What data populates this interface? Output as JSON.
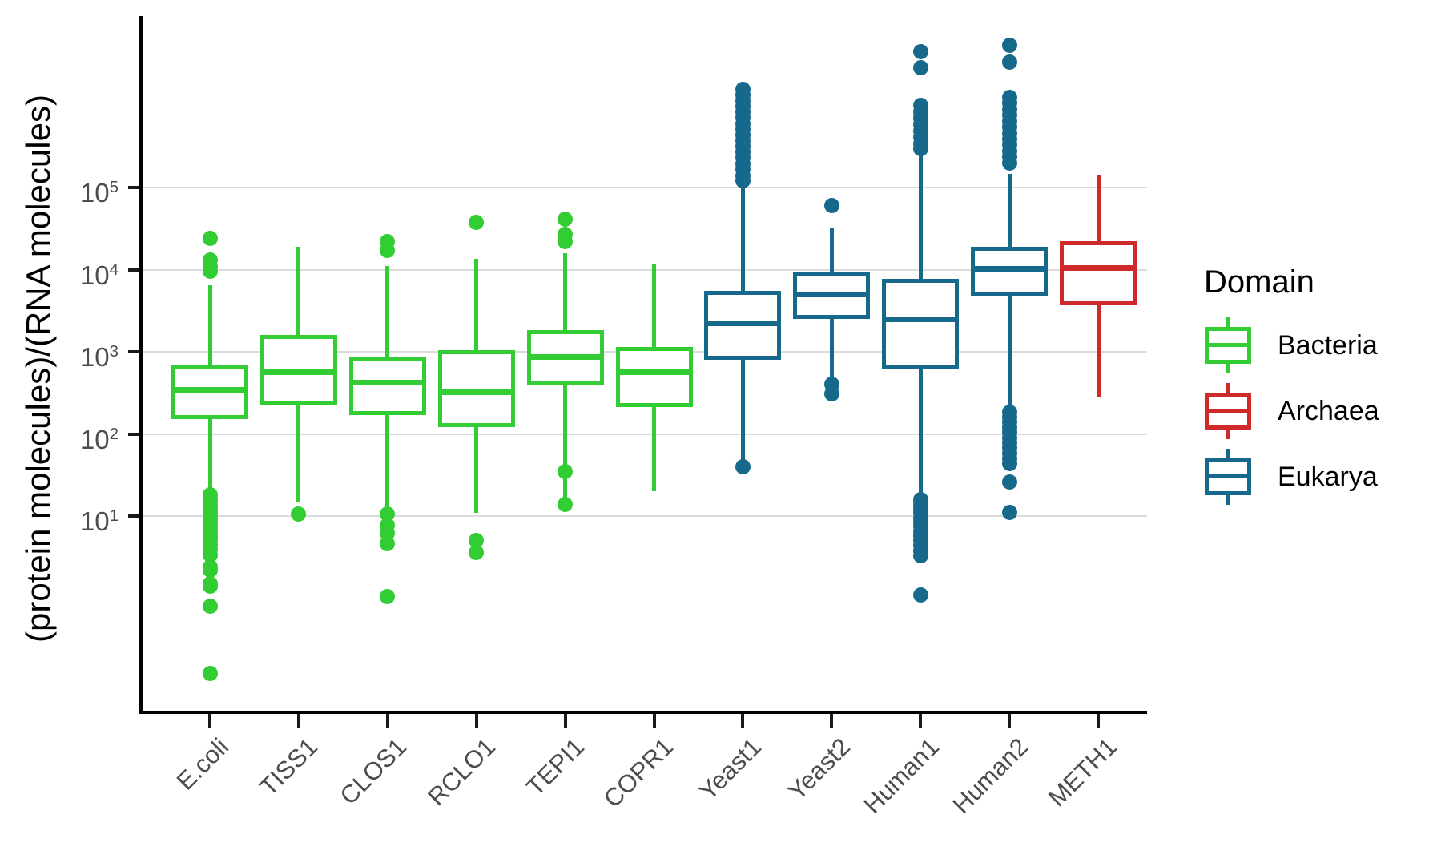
{
  "y_axis": {
    "title": "(protein molecules)/(RNA molecules)",
    "ticks": [
      {
        "exponent": 5,
        "value": 100000
      },
      {
        "exponent": 4,
        "value": 10000
      },
      {
        "exponent": 3,
        "value": 1000
      },
      {
        "exponent": 2,
        "value": 100
      },
      {
        "exponent": 1,
        "value": 10
      }
    ]
  },
  "legend": {
    "title": "Domain",
    "items": [
      {
        "label": "Bacteria",
        "color": "#32CD32"
      },
      {
        "label": "Archaea",
        "color": "#CE2A2A"
      },
      {
        "label": "Eukarya",
        "color": "#17698C"
      }
    ]
  },
  "chart_data": {
    "type": "boxplot",
    "title": "",
    "xlabel": "",
    "ylabel": "(protein molecules)/(RNA molecules)",
    "y_scale": "log10",
    "ylim": [
      0.04,
      12000000
    ],
    "grid": "horizontal-major-decades",
    "legend_position": "right",
    "categories": [
      "E.coli",
      "TISS1",
      "CLOS1",
      "RCLO1",
      "TEPI1",
      "COPR1",
      "Yeast1",
      "Yeast2",
      "Human1",
      "Human2",
      "METH1"
    ],
    "series": [
      {
        "name": "E.coli",
        "domain": "Bacteria",
        "color": "#32CD32",
        "stats": {
          "whisker_low": 21,
          "q1": 150,
          "median": 345,
          "q3": 680,
          "whisker_high": 6500
        },
        "outliers_high": [
          24000,
          13000,
          11000,
          9500
        ],
        "outliers_low": [
          18,
          16,
          14,
          12.5,
          11,
          10,
          9,
          8,
          7,
          6.3,
          5.6,
          5,
          4.4,
          3.9,
          3.4,
          2.4,
          2.2,
          1.5,
          1.4,
          0.8,
          0.12
        ]
      },
      {
        "name": "TISS1",
        "domain": "Bacteria",
        "color": "#32CD32",
        "stats": {
          "whisker_low": 15,
          "q1": 225,
          "median": 560,
          "q3": 1600,
          "whisker_high": 19000
        },
        "outliers_high": [],
        "outliers_low": [
          10.5
        ]
      },
      {
        "name": "CLOS1",
        "domain": "Bacteria",
        "color": "#32CD32",
        "stats": {
          "whisker_low": 13,
          "q1": 170,
          "median": 420,
          "q3": 880,
          "whisker_high": 11000
        },
        "outliers_high": [
          22000,
          17000
        ],
        "outliers_low": [
          10.5,
          7.8,
          6.2,
          4.6,
          1.05
        ]
      },
      {
        "name": "RCLO1",
        "domain": "Bacteria",
        "color": "#32CD32",
        "stats": {
          "whisker_low": 11,
          "q1": 120,
          "median": 320,
          "q3": 1050,
          "whisker_high": 13500
        },
        "outliers_high": [
          38000
        ],
        "outliers_low": [
          5,
          3.6
        ]
      },
      {
        "name": "TEPI1",
        "domain": "Bacteria",
        "color": "#32CD32",
        "stats": {
          "whisker_low": 15,
          "q1": 400,
          "median": 870,
          "q3": 1850,
          "whisker_high": 16000
        },
        "outliers_high": [
          41000,
          27000,
          22000
        ],
        "outliers_low": [
          35,
          14
        ]
      },
      {
        "name": "COPR1",
        "domain": "Bacteria",
        "color": "#32CD32",
        "stats": {
          "whisker_low": 20,
          "q1": 210,
          "median": 560,
          "q3": 1150,
          "whisker_high": 11500
        },
        "outliers_high": [],
        "outliers_low": []
      },
      {
        "name": "Yeast1",
        "domain": "Eukarya",
        "color": "#17698C",
        "stats": {
          "whisker_low": 42,
          "q1": 800,
          "median": 2200,
          "q3": 5500,
          "whisker_high": 105000
        },
        "outliers_high": [
          1580000,
          1350000,
          1150000,
          980000,
          830000,
          710000,
          600000,
          510000,
          440000,
          370000,
          320000,
          270000,
          230000,
          195000,
          165000,
          140000,
          120000
        ],
        "outliers_low": [
          40
        ]
      },
      {
        "name": "Yeast2",
        "domain": "Eukarya",
        "color": "#17698C",
        "stats": {
          "whisker_low": 450,
          "q1": 2500,
          "median": 5000,
          "q3": 9500,
          "whisker_high": 32000
        },
        "outliers_high": [
          60000
        ],
        "outliers_low": [
          400,
          310
        ]
      },
      {
        "name": "Human1",
        "domain": "Eukarya",
        "color": "#17698C",
        "stats": {
          "whisker_low": 19,
          "q1": 620,
          "median": 2500,
          "q3": 7700,
          "whisker_high": 275000
        },
        "outliers_high": [
          4500000,
          2900000,
          1000000,
          840000,
          700000,
          580000,
          490000,
          410000,
          340000,
          300000
        ],
        "outliers_low": [
          16,
          14,
          12.5,
          11,
          9.5,
          8.5,
          7.5,
          6.5,
          5.8,
          5,
          4.4,
          3.8,
          3.3,
          1.1
        ]
      },
      {
        "name": "Human2",
        "domain": "Eukarya",
        "color": "#17698C",
        "stats": {
          "whisker_low": 200,
          "q1": 4800,
          "median": 10200,
          "q3": 19000,
          "whisker_high": 145000
        },
        "outliers_high": [
          5400000,
          3400000,
          1250000,
          1060000,
          900000,
          760000,
          640000,
          540000,
          460000,
          390000,
          330000,
          280000,
          240000,
          200000
        ],
        "outliers_low": [
          185,
          160,
          140,
          120,
          105,
          90,
          78,
          68,
          58,
          50,
          44,
          26,
          11
        ]
      },
      {
        "name": "METH1",
        "domain": "Archaea",
        "color": "#CE2A2A",
        "stats": {
          "whisker_low": 280,
          "q1": 3700,
          "median": 10500,
          "q3": 22000,
          "whisker_high": 140000
        },
        "outliers_high": [],
        "outliers_low": []
      }
    ]
  }
}
